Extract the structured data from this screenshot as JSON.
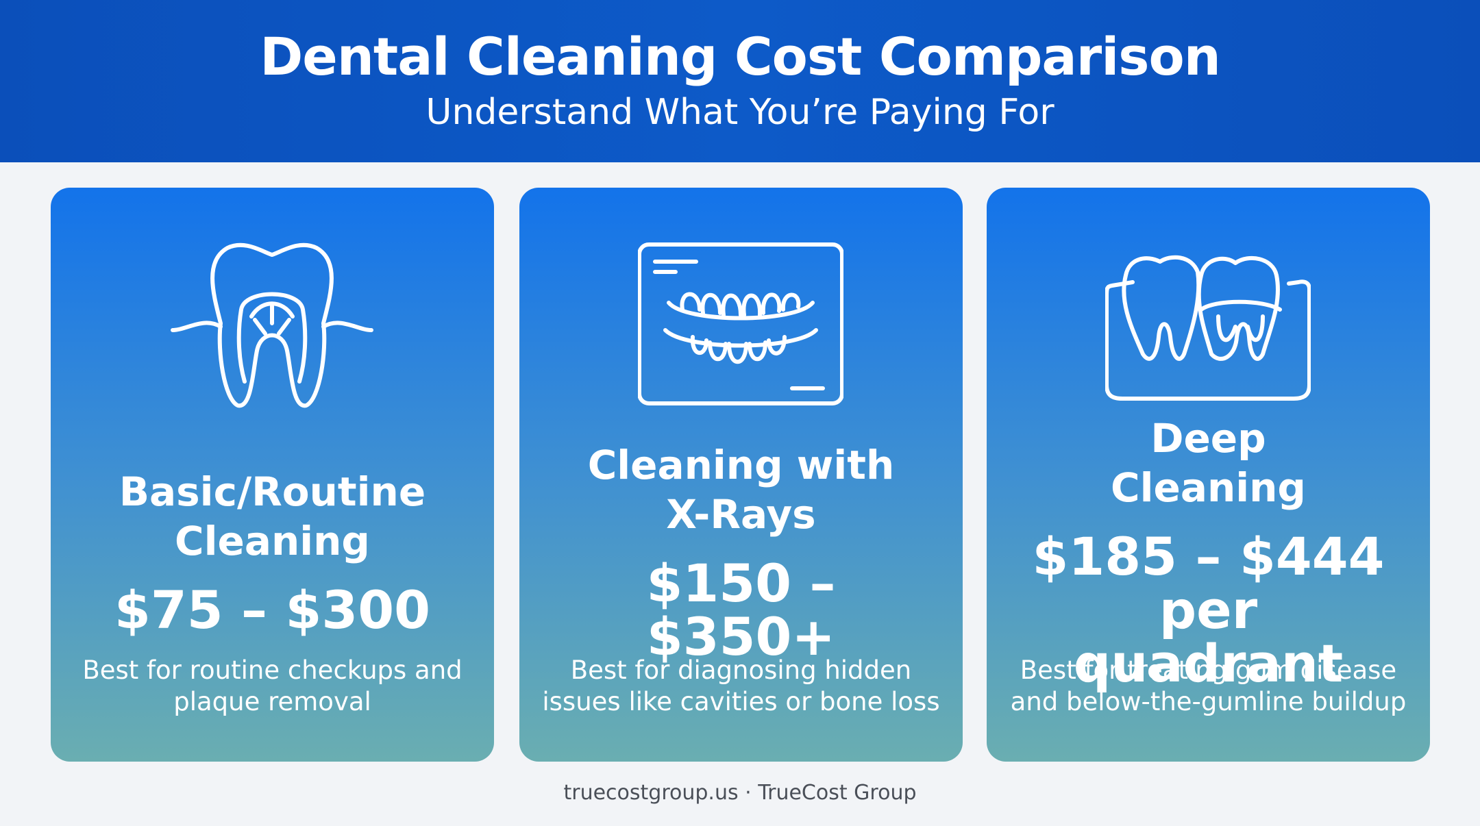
{
  "header": {
    "title": "Dental Cleaning Cost Comparison",
    "subtitle": "Understand What You’re Paying For"
  },
  "cards": [
    {
      "title": "Basic/Routine Cleaning",
      "price": "$75 – $300",
      "description": "Best for routine checkups and plaque removal"
    },
    {
      "title": "Cleaning with X-Rays",
      "price": "$150 – $350+",
      "description": "Best for diagnosing hidden issues like cavities or bone loss"
    },
    {
      "title": "Deep Cleaning",
      "price": "$185 – $444 per quadrant",
      "description": "Best for treating gum disease and below-the-gumline buildup"
    }
  ],
  "footer": "truecostgroup.us · TrueCost Group"
}
